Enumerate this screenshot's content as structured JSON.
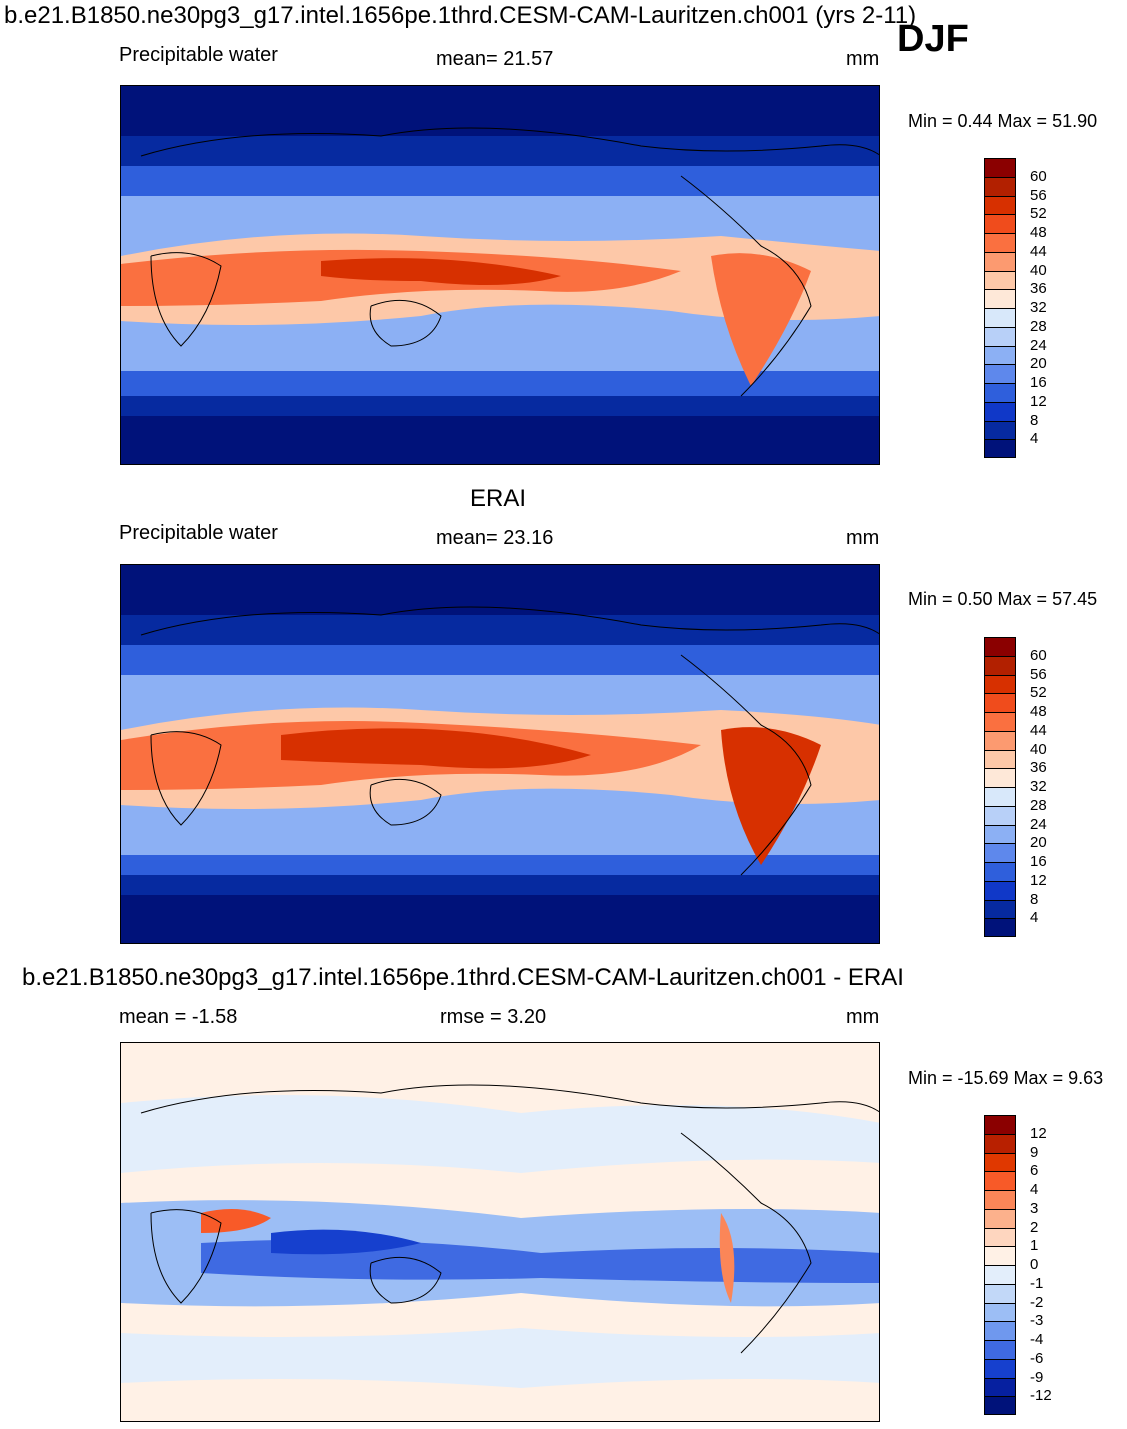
{
  "header": {
    "title": "b.e21.B1850.ne30pg3_g17.intel.1656pe.1thrd.CESM-CAM-Lauritzen.ch001 (yrs 2-11)",
    "season": "DJF"
  },
  "panels": [
    {
      "variable": "Precipitable water",
      "stat": "mean=  21.57",
      "units": "mm",
      "minmax": "Min =    0.44 Max =  51.90",
      "colorbar_ticks": [
        "60",
        "56",
        "52",
        "48",
        "44",
        "40",
        "36",
        "32",
        "28",
        "24",
        "20",
        "16",
        "12",
        "8",
        "4"
      ]
    },
    {
      "title": "ERAI",
      "variable": "Precipitable water",
      "stat": "mean=  23.16",
      "units": "mm",
      "minmax": "Min =    0.50 Max =  57.45",
      "colorbar_ticks": [
        "60",
        "56",
        "52",
        "48",
        "44",
        "40",
        "36",
        "32",
        "28",
        "24",
        "20",
        "16",
        "12",
        "8",
        "4"
      ]
    },
    {
      "title": "b.e21.B1850.ne30pg3_g17.intel.1656pe.1thrd.CESM-CAM-Lauritzen.ch001 - ERAI",
      "stat_left": "mean =   -1.58",
      "stat_center": "rmse =     3.20",
      "units": "mm",
      "minmax": "Min = -15.69 Max =    9.63",
      "colorbar_ticks": [
        "12",
        "9",
        "6",
        "4",
        "3",
        "2",
        "1",
        "0",
        "-1",
        "-2",
        "-3",
        "-4",
        "-6",
        "-9",
        "-12"
      ]
    }
  ],
  "colors": {
    "abs_scale": [
      "#8b0000",
      "#b22000",
      "#d73000",
      "#f04c1c",
      "#fa7040",
      "#fc9a70",
      "#fdc8a8",
      "#fee8d8",
      "#d8e8fa",
      "#b8d0f8",
      "#8cb0f4",
      "#5e88ec",
      "#2f5fdc",
      "#1038c8",
      "#062aa0",
      "#00127a"
    ],
    "diff_scale": [
      "#8b0000",
      "#b82000",
      "#e03800",
      "#f85a28",
      "#fb8658",
      "#fcb18c",
      "#fed6bf",
      "#fff1e6",
      "#e3eefb",
      "#c2d8f8",
      "#9cbef5",
      "#6f98ee",
      "#3f6ae2",
      "#1640ce",
      "#0620a0",
      "#00127a"
    ]
  }
}
